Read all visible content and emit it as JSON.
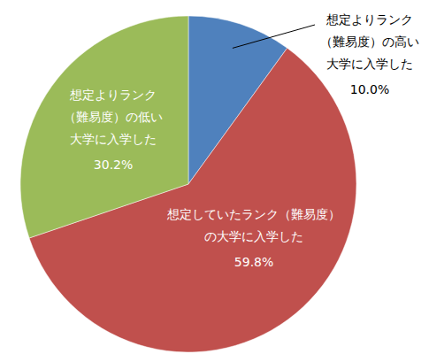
{
  "chart_data": {
    "type": "pie",
    "categories": [
      "想定よりランク（難易度）の高い大学に入学した",
      "想定していたランク（難易度）の大学に入学した",
      "想定よりランク（難易度）の低い大学に入学した"
    ],
    "values": [
      10.0,
      59.8,
      30.2
    ],
    "value_labels": [
      "10.0%",
      "59.8%",
      "30.2%"
    ],
    "colors": [
      "#4f81bd",
      "#c0504d",
      "#9bbb59"
    ],
    "data_labels": true
  }
}
